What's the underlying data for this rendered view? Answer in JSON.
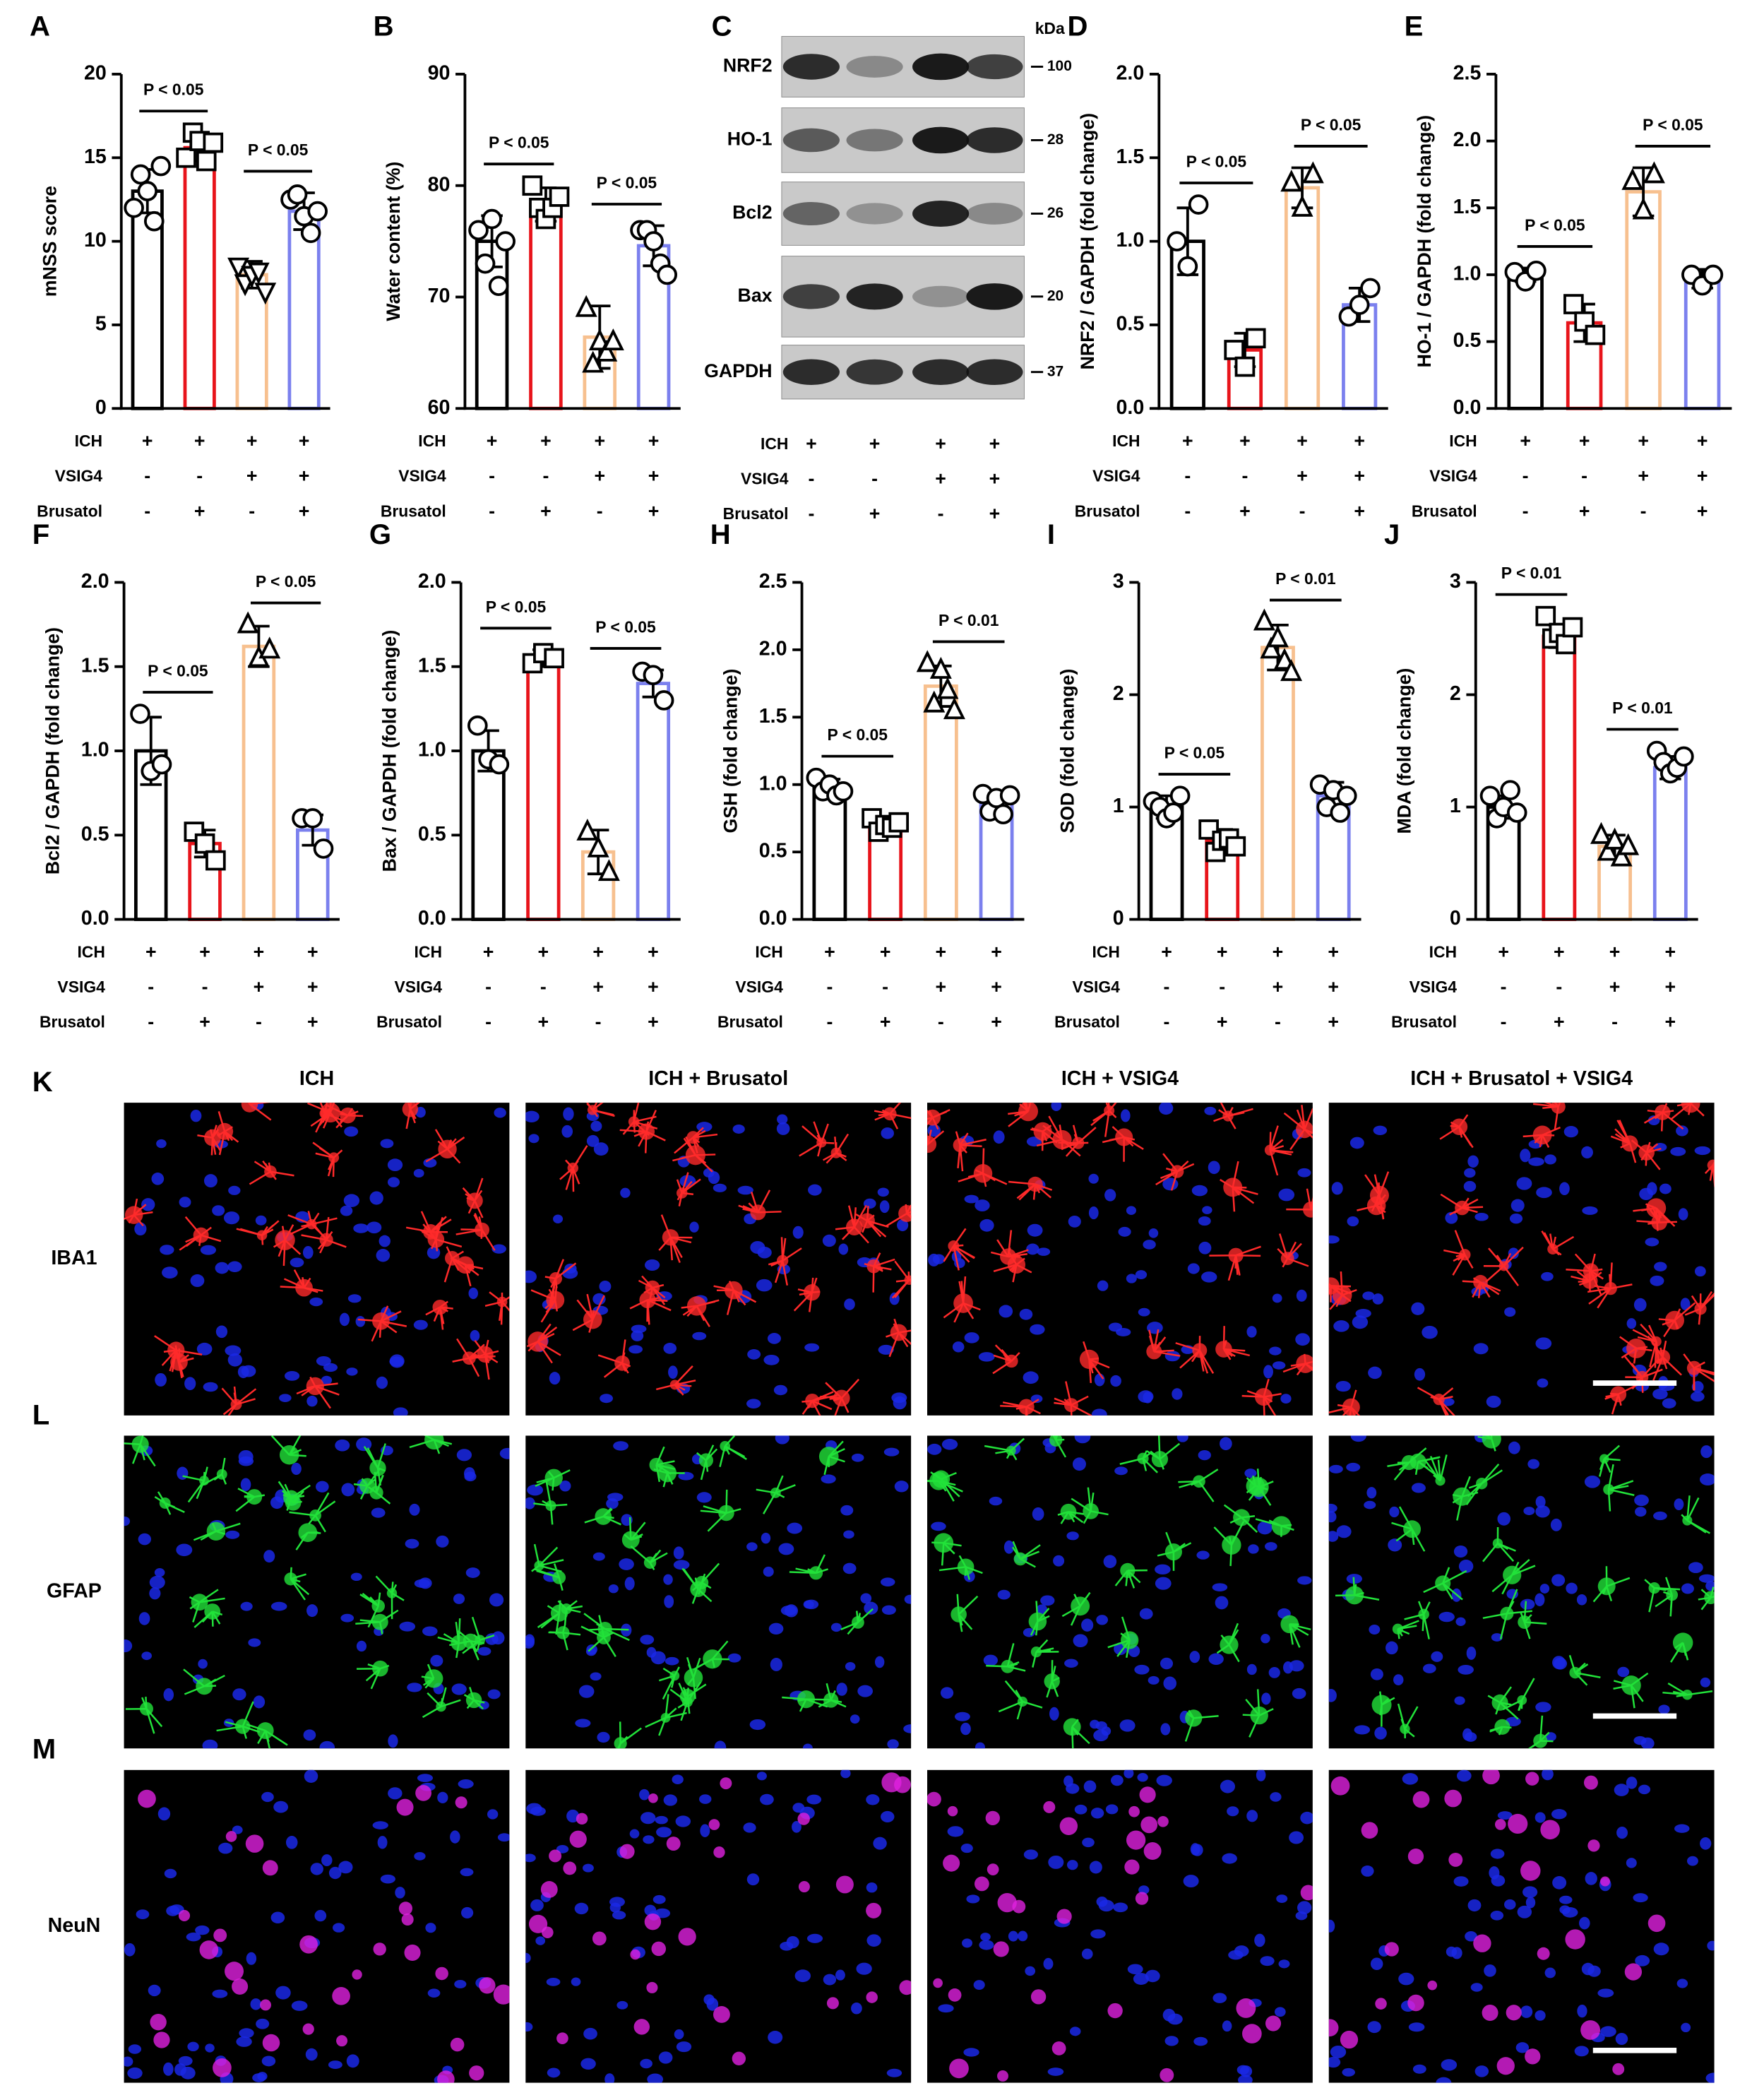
{
  "chart_data": [
    {
      "type": "bar",
      "panel": "A",
      "ylabel": "mNSS score",
      "ylim": [
        0,
        20
      ],
      "yticks": [
        0,
        5,
        10,
        15,
        20
      ],
      "colors": [
        "#000000",
        "#e8141b",
        "#f7c08f",
        "#7b80ee"
      ],
      "markers": [
        "circle",
        "square",
        "triangle-down",
        "circle"
      ],
      "values": [
        13,
        15.6,
        8,
        11.8
      ],
      "sd": [
        1.3,
        0.8,
        0.8,
        1.1
      ],
      "points": [
        [
          12,
          14,
          13,
          11.2,
          14.5
        ],
        [
          15,
          16.5,
          16,
          14.8,
          15.9
        ],
        [
          8.5,
          7.5,
          8,
          8.2,
          7
        ],
        [
          12.5,
          12.8,
          11.5,
          10.5,
          11.8
        ]
      ],
      "comparisons": [
        "P < 0.05",
        "P < 0.05"
      ],
      "conditions": [
        {
          "name": "ICH",
          "signs": [
            "+",
            "+",
            "+",
            "+"
          ]
        },
        {
          "name": "VSIG4",
          "signs": [
            "-",
            "-",
            "+",
            "+"
          ]
        },
        {
          "name": "Brusatol",
          "signs": [
            "-",
            "+",
            "-",
            "+"
          ]
        }
      ]
    },
    {
      "type": "bar",
      "panel": "B",
      "ylabel": "Water content (%)",
      "ylim": [
        60,
        90
      ],
      "yticks": [
        60,
        70,
        80,
        90
      ],
      "colors": [
        "#000000",
        "#e8141b",
        "#f7c08f",
        "#7b80ee"
      ],
      "markers": [
        "circle",
        "square",
        "triangle",
        "circle"
      ],
      "values": [
        75,
        78.3,
        66.4,
        74.6
      ],
      "sd": [
        2.3,
        1.5,
        2.8,
        1.8
      ],
      "points": [
        [
          76,
          73,
          77,
          71,
          75
        ],
        [
          80,
          78,
          77,
          78,
          79
        ],
        [
          69,
          64,
          66,
          65,
          66
        ],
        [
          76,
          76,
          75,
          73,
          72
        ]
      ],
      "comparisons": [
        "P < 0.05",
        "P < 0.05"
      ],
      "conditions": [
        {
          "name": "ICH",
          "signs": [
            "+",
            "+",
            "+",
            "+"
          ]
        },
        {
          "name": "VSIG4",
          "signs": [
            "-",
            "-",
            "+",
            "+"
          ]
        },
        {
          "name": "Brusatol",
          "signs": [
            "-",
            "+",
            "-",
            "+"
          ]
        }
      ]
    },
    {
      "type": "bar",
      "panel": "D",
      "ylabel": "NRF2 / GAPDH (fold change)",
      "ylim": [
        0,
        2
      ],
      "yticks": [
        {
          "value": 0,
          "label": "0.0"
        },
        0.5,
        {
          "value": 1,
          "label": "1.0"
        },
        1.5,
        {
          "value": 2,
          "label": "2.0"
        }
      ],
      "colors": [
        "#000000",
        "#e8141b",
        "#f7c08f",
        "#7b80ee"
      ],
      "markers": [
        "circle",
        "square",
        "triangle",
        "circle"
      ],
      "values": [
        1.0,
        0.35,
        1.32,
        0.62
      ],
      "sd": [
        0.2,
        0.1,
        0.12,
        0.1
      ],
      "points": [
        [
          1.0,
          0.85,
          1.22
        ],
        [
          0.35,
          0.25,
          0.42
        ],
        [
          1.35,
          1.2,
          1.4
        ],
        [
          0.55,
          0.62,
          0.72
        ]
      ],
      "comparisons": [
        "P < 0.05",
        "P < 0.05"
      ],
      "conditions": [
        {
          "name": "ICH",
          "signs": [
            "+",
            "+",
            "+",
            "+"
          ]
        },
        {
          "name": "VSIG4",
          "signs": [
            "-",
            "-",
            "+",
            "+"
          ]
        },
        {
          "name": "Brusatol",
          "signs": [
            "-",
            "+",
            "-",
            "+"
          ]
        }
      ]
    },
    {
      "type": "bar",
      "panel": "E",
      "ylabel": "HO-1 / GAPDH (fold change)",
      "ylim": [
        0,
        2.5
      ],
      "yticks": [
        {
          "value": 0,
          "label": "0.0"
        },
        0.5,
        {
          "value": 1,
          "label": "1.0"
        },
        1.5,
        {
          "value": 2,
          "label": "2.0"
        },
        2.5
      ],
      "colors": [
        "#000000",
        "#e8141b",
        "#f7c08f",
        "#7b80ee"
      ],
      "markers": [
        "circle",
        "square",
        "triangle",
        "circle"
      ],
      "values": [
        1.0,
        0.64,
        1.62,
        0.97
      ],
      "sd": [
        0.05,
        0.14,
        0.18,
        0.07
      ],
      "points": [
        [
          1.02,
          0.95,
          1.03
        ],
        [
          0.78,
          0.65,
          0.55
        ],
        [
          1.7,
          1.48,
          1.75
        ],
        [
          1.0,
          0.92,
          1.0
        ]
      ],
      "comparisons": [
        "P < 0.05",
        "P < 0.05"
      ],
      "conditions": [
        {
          "name": "ICH",
          "signs": [
            "+",
            "+",
            "+",
            "+"
          ]
        },
        {
          "name": "VSIG4",
          "signs": [
            "-",
            "-",
            "+",
            "+"
          ]
        },
        {
          "name": "Brusatol",
          "signs": [
            "-",
            "+",
            "-",
            "+"
          ]
        }
      ]
    },
    {
      "type": "bar",
      "panel": "F",
      "ylabel": "Bcl2 / GAPDH (fold change)",
      "ylim": [
        0,
        2
      ],
      "yticks": [
        {
          "value": 0,
          "label": "0.0"
        },
        0.5,
        {
          "value": 1,
          "label": "1.0"
        },
        1.5,
        {
          "value": 2,
          "label": "2.0"
        }
      ],
      "colors": [
        "#000000",
        "#e8141b",
        "#f7c08f",
        "#7b80ee"
      ],
      "markers": [
        "circle",
        "square",
        "triangle",
        "circle"
      ],
      "values": [
        1.0,
        0.45,
        1.62,
        0.53
      ],
      "sd": [
        0.2,
        0.08,
        0.12,
        0.09
      ],
      "points": [
        [
          1.22,
          0.88,
          0.92
        ],
        [
          0.52,
          0.45,
          0.35
        ],
        [
          1.75,
          1.55,
          1.6
        ],
        [
          0.6,
          0.6,
          0.42
        ]
      ],
      "comparisons": [
        "P < 0.05",
        "P < 0.05"
      ],
      "conditions": [
        {
          "name": "ICH",
          "signs": [
            "+",
            "+",
            "+",
            "+"
          ]
        },
        {
          "name": "VSIG4",
          "signs": [
            "-",
            "-",
            "+",
            "+"
          ]
        },
        {
          "name": "Brusatol",
          "signs": [
            "-",
            "+",
            "-",
            "+"
          ]
        }
      ]
    },
    {
      "type": "bar",
      "panel": "G",
      "ylabel": "Bax / GAPDH (fold change)",
      "ylim": [
        0,
        2
      ],
      "yticks": [
        {
          "value": 0,
          "label": "0.0"
        },
        0.5,
        {
          "value": 1,
          "label": "1.0"
        },
        1.5,
        {
          "value": 2,
          "label": "2.0"
        }
      ],
      "colors": [
        "#000000",
        "#e8141b",
        "#f7c08f",
        "#7b80ee"
      ],
      "markers": [
        "circle",
        "square",
        "triangle",
        "circle"
      ],
      "values": [
        1.0,
        1.55,
        0.4,
        1.4
      ],
      "sd": [
        0.12,
        0.05,
        0.13,
        0.08
      ],
      "points": [
        [
          1.15,
          0.95,
          0.92
        ],
        [
          1.52,
          1.58,
          1.55
        ],
        [
          0.52,
          0.42,
          0.28
        ],
        [
          1.47,
          1.45,
          1.3
        ]
      ],
      "comparisons": [
        "P < 0.05",
        "P < 0.05"
      ],
      "conditions": [
        {
          "name": "ICH",
          "signs": [
            "+",
            "+",
            "+",
            "+"
          ]
        },
        {
          "name": "VSIG4",
          "signs": [
            "-",
            "-",
            "+",
            "+"
          ]
        },
        {
          "name": "Brusatol",
          "signs": [
            "-",
            "+",
            "-",
            "+"
          ]
        }
      ]
    },
    {
      "type": "bar",
      "panel": "H",
      "ylabel": "GSH (fold change)",
      "ylim": [
        0,
        2.5
      ],
      "yticks": [
        {
          "value": 0,
          "label": "0.0"
        },
        0.5,
        {
          "value": 1,
          "label": "1.0"
        },
        1.5,
        {
          "value": 2,
          "label": "2.0"
        },
        2.5
      ],
      "colors": [
        "#000000",
        "#e8141b",
        "#f7c08f",
        "#7b80ee"
      ],
      "markers": [
        "circle",
        "square",
        "triangle",
        "circle"
      ],
      "values": [
        0.97,
        0.7,
        1.73,
        0.87
      ],
      "sd": [
        0.07,
        0.06,
        0.15,
        0.08
      ],
      "points": [
        [
          1.05,
          0.95,
          1.0,
          0.92,
          0.95
        ],
        [
          0.75,
          0.65,
          0.7,
          0.68,
          0.72
        ],
        [
          1.9,
          1.6,
          1.85,
          1.7,
          1.55
        ],
        [
          0.93,
          0.8,
          0.9,
          0.78,
          0.92
        ]
      ],
      "comparisons": [
        "P < 0.05",
        "P < 0.01"
      ],
      "conditions": [
        {
          "name": "ICH",
          "signs": [
            "+",
            "+",
            "+",
            "+"
          ]
        },
        {
          "name": "VSIG4",
          "signs": [
            "-",
            "-",
            "+",
            "+"
          ]
        },
        {
          "name": "Brusatol",
          "signs": [
            "-",
            "+",
            "-",
            "+"
          ]
        }
      ]
    },
    {
      "type": "bar",
      "panel": "I",
      "ylabel": "SOD (fold change)",
      "ylim": [
        0,
        3
      ],
      "yticks": [
        0,
        1,
        2,
        3
      ],
      "colors": [
        "#000000",
        "#e8141b",
        "#f7c08f",
        "#7b80ee"
      ],
      "markers": [
        "circle",
        "square",
        "triangle",
        "circle"
      ],
      "values": [
        1.0,
        0.7,
        2.42,
        1.1
      ],
      "sd": [
        0.1,
        0.1,
        0.2,
        0.12
      ],
      "points": [
        [
          1.05,
          1.0,
          0.9,
          0.95,
          1.1
        ],
        [
          0.8,
          0.6,
          0.7,
          0.72,
          0.65
        ],
        [
          2.65,
          2.4,
          2.5,
          2.3,
          2.2
        ],
        [
          1.2,
          1.0,
          1.15,
          0.95,
          1.1
        ]
      ],
      "comparisons": [
        "P < 0.05",
        "P < 0.01"
      ],
      "conditions": [
        {
          "name": "ICH",
          "signs": [
            "+",
            "+",
            "+",
            "+"
          ]
        },
        {
          "name": "VSIG4",
          "signs": [
            "-",
            "-",
            "+",
            "+"
          ]
        },
        {
          "name": "Brusatol",
          "signs": [
            "-",
            "+",
            "-",
            "+"
          ]
        }
      ]
    },
    {
      "type": "bar",
      "panel": "J",
      "ylabel": "MDA (fold change)",
      "ylim": [
        0,
        3
      ],
      "yticks": [
        0,
        1,
        2,
        3
      ],
      "colors": [
        "#000000",
        "#e8141b",
        "#f7c08f",
        "#7b80ee"
      ],
      "markers": [
        "circle",
        "square",
        "triangle",
        "circle"
      ],
      "values": [
        1.0,
        2.52,
        0.65,
        1.35
      ],
      "sd": [
        0.1,
        0.1,
        0.1,
        0.1
      ],
      "points": [
        [
          1.1,
          0.9,
          1.0,
          1.15,
          0.95
        ],
        [
          2.7,
          2.5,
          2.55,
          2.45,
          2.6
        ],
        [
          0.75,
          0.6,
          0.7,
          0.55,
          0.65
        ],
        [
          1.5,
          1.4,
          1.3,
          1.35,
          1.45
        ]
      ],
      "comparisons": [
        "P < 0.01",
        "P < 0.01"
      ],
      "conditions": [
        {
          "name": "ICH",
          "signs": [
            "+",
            "+",
            "+",
            "+"
          ]
        },
        {
          "name": "VSIG4",
          "signs": [
            "-",
            "-",
            "+",
            "+"
          ]
        },
        {
          "name": "Brusatol",
          "signs": [
            "-",
            "+",
            "-",
            "+"
          ]
        }
      ]
    }
  ],
  "blot": {
    "panel": "C",
    "unit": "kDa",
    "rows": [
      {
        "protein": "NRF2",
        "kda": 100
      },
      {
        "protein": "HO-1",
        "kda": 28
      },
      {
        "protein": "Bcl2",
        "kda": 26
      },
      {
        "protein": "Bax",
        "kda": 20
      },
      {
        "protein": "GAPDH",
        "kda": 37
      }
    ],
    "conditions": [
      {
        "name": "ICH",
        "signs": [
          "+",
          "+",
          "+",
          "+"
        ]
      },
      {
        "name": "VSIG4",
        "signs": [
          "-",
          "-",
          "+",
          "+"
        ]
      },
      {
        "name": "Brusatol",
        "signs": [
          "-",
          "+",
          "-",
          "+"
        ]
      }
    ]
  },
  "micrographs": {
    "columns": [
      "ICH",
      "ICH + Brusatol",
      "ICH + VSIG4",
      "ICH + Brusatol + VSIG4"
    ],
    "rows": [
      {
        "panel": "K",
        "stain": "IBA1",
        "color": "#ff2a2a"
      },
      {
        "panel": "L",
        "stain": "GFAP",
        "color": "#22e23a"
      },
      {
        "panel": "M",
        "stain": "NeuN",
        "color": "#e020e0"
      }
    ]
  }
}
